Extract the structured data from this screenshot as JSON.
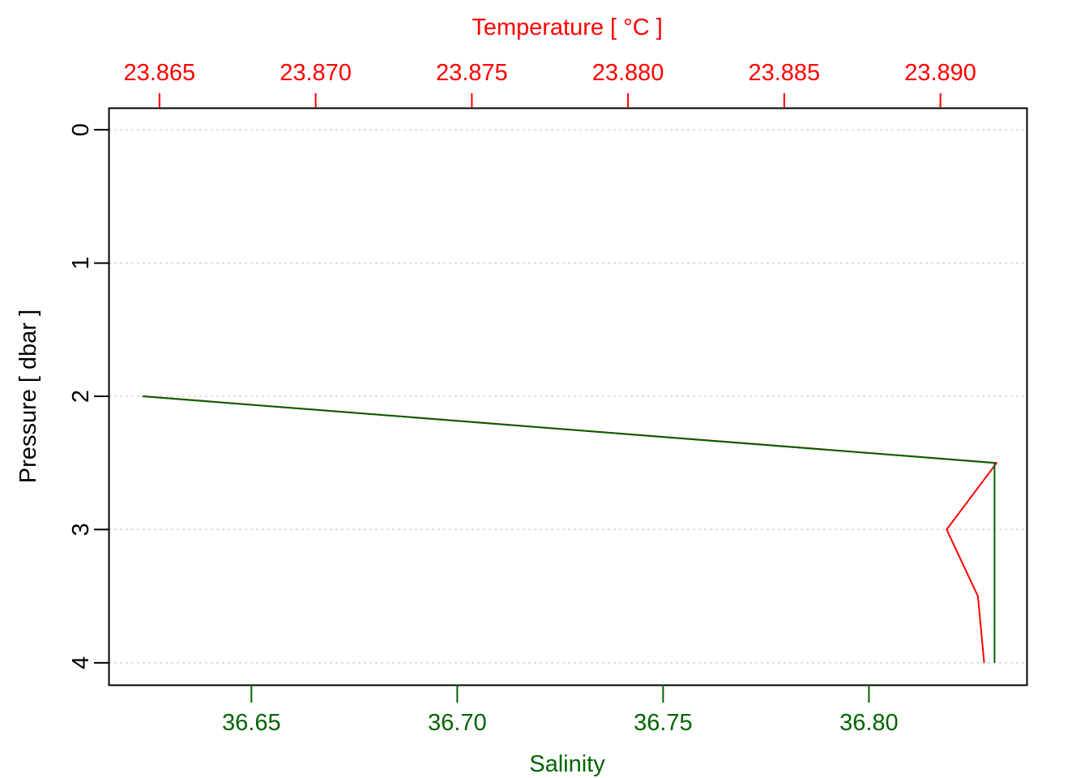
{
  "chart_data": {
    "type": "line",
    "y_axis": {
      "label": "Pressure [ dbar ]",
      "ticks": [
        "0",
        "1",
        "2",
        "3",
        "4"
      ],
      "tick_values": [
        0,
        1,
        2,
        3,
        4
      ],
      "range": [
        -0.165,
        4.165
      ],
      "reversed": true
    },
    "x_axis_bottom": {
      "label": "Salinity",
      "color": "#006400",
      "ticks": [
        "36.65",
        "36.70",
        "36.75",
        "36.80"
      ],
      "tick_values": [
        36.65,
        36.7,
        36.75,
        36.8
      ],
      "range": [
        36.6153,
        36.8383
      ]
    },
    "x_axis_top": {
      "label": "Temperature [ °C ]",
      "color": "#ff0000",
      "ticks": [
        "23.865",
        "23.870",
        "23.875",
        "23.880",
        "23.885",
        "23.890"
      ],
      "tick_values": [
        23.865,
        23.87,
        23.875,
        23.88,
        23.885,
        23.89
      ],
      "range": [
        23.86337,
        23.89276
      ]
    },
    "grid": true,
    "grid_lines_at": [
      0,
      1,
      2,
      3,
      4
    ],
    "series": [
      {
        "name": "Temperature",
        "color": "#ff0000",
        "axis": "top",
        "points": [
          {
            "x": 23.8645,
            "y": 2.0
          },
          {
            "x": 23.8918,
            "y": 2.5
          },
          {
            "x": 23.8902,
            "y": 3.0
          },
          {
            "x": 23.8912,
            "y": 3.5
          },
          {
            "x": 23.8914,
            "y": 4.0
          }
        ]
      },
      {
        "name": "Salinity",
        "color": "#006400",
        "axis": "bottom",
        "points": [
          {
            "x": 36.6235,
            "y": 2.0
          },
          {
            "x": 36.8305,
            "y": 2.5
          },
          {
            "x": 36.8305,
            "y": 3.0
          },
          {
            "x": 36.8305,
            "y": 3.5
          },
          {
            "x": 36.8305,
            "y": 4.0
          }
        ]
      }
    ]
  }
}
